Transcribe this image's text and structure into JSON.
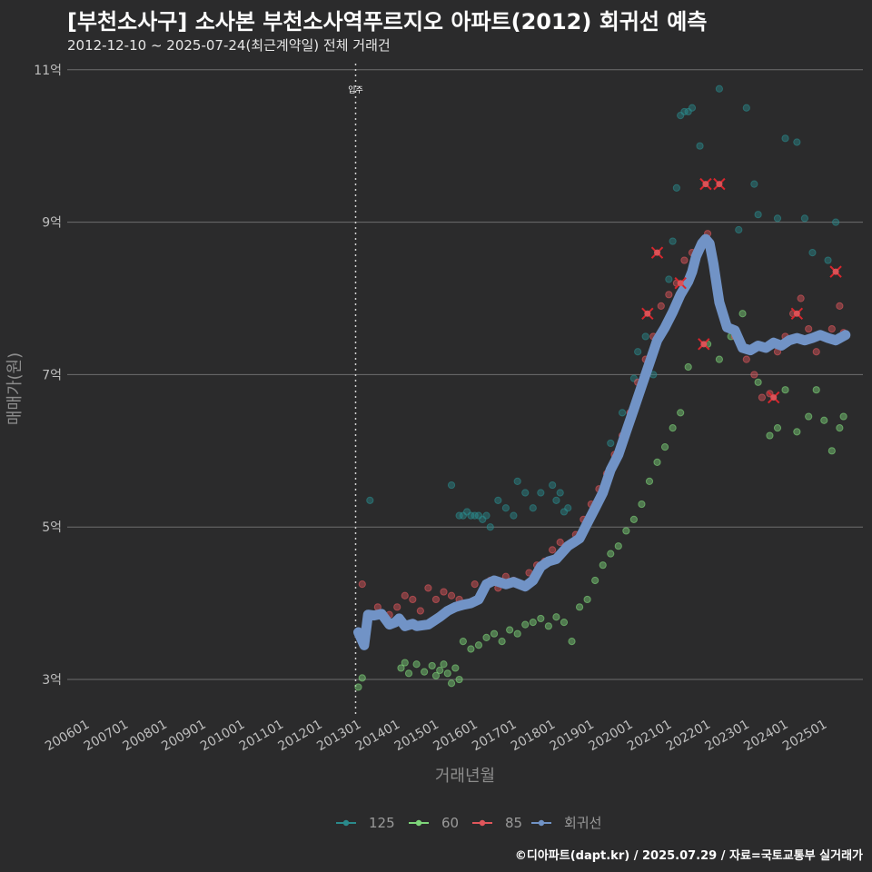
{
  "chart_data": {
    "type": "scatter",
    "title": "[부천소사구] 소사본 부천소사역푸르지오 아파트(2012) 회귀선 예측",
    "subtitle": "2012-12-10 ~ 2025-07-24(최근계약일) 전체 거래건",
    "xlabel": "거래년월",
    "ylabel": "매매가(원)",
    "ylim": [
      2.5,
      11.2
    ],
    "xlim": [
      2005.5,
      2026.0
    ],
    "y_ticks": [
      {
        "v": 3,
        "label": "3억"
      },
      {
        "v": 5,
        "label": "5억"
      },
      {
        "v": 7,
        "label": "7억"
      },
      {
        "v": 9,
        "label": "9억"
      },
      {
        "v": 11,
        "label": "11억"
      }
    ],
    "x_ticks": [
      {
        "v": 2006,
        "label": "200601"
      },
      {
        "v": 2007,
        "label": "200701"
      },
      {
        "v": 2008,
        "label": "200801"
      },
      {
        "v": 2009,
        "label": "200901"
      },
      {
        "v": 2010,
        "label": "201001"
      },
      {
        "v": 2011,
        "label": "201101"
      },
      {
        "v": 2012,
        "label": "201201"
      },
      {
        "v": 2013,
        "label": "201301"
      },
      {
        "v": 2014,
        "label": "201401"
      },
      {
        "v": 2015,
        "label": "201501"
      },
      {
        "v": 2016,
        "label": "201601"
      },
      {
        "v": 2017,
        "label": "201701"
      },
      {
        "v": 2018,
        "label": "201801"
      },
      {
        "v": 2019,
        "label": "201901"
      },
      {
        "v": 2020,
        "label": "202001"
      },
      {
        "v": 2021,
        "label": "202101"
      },
      {
        "v": 2022,
        "label": "202201"
      },
      {
        "v": 2023,
        "label": "202301"
      },
      {
        "v": 2024,
        "label": "202401"
      },
      {
        "v": 2025,
        "label": "202501"
      }
    ],
    "annotation": {
      "x": 2012.93,
      "label": "입주"
    },
    "legend": [
      {
        "name": "125",
        "color": "#2a8a8c"
      },
      {
        "name": "60",
        "color": "#7ed67a"
      },
      {
        "name": "85",
        "color": "#e0565b"
      },
      {
        "name": "회귀선",
        "color": "#7193c6"
      }
    ],
    "regression": {
      "name": "회귀선",
      "x": [
        2013.0,
        2013.15,
        2013.25,
        2013.4,
        2013.6,
        2013.8,
        2013.95,
        2014.05,
        2014.2,
        2014.4,
        2014.5,
        2014.8,
        2015.1,
        2015.3,
        2015.5,
        2015.7,
        2015.9,
        2016.1,
        2016.3,
        2016.5,
        2016.8,
        2017.0,
        2017.3,
        2017.5,
        2017.7,
        2017.9,
        2018.1,
        2018.4,
        2018.7,
        2018.9,
        2019.1,
        2019.3,
        2019.5,
        2019.7,
        2019.9,
        2020.1,
        2020.3,
        2020.5,
        2020.7,
        2020.9,
        2021.1,
        2021.3,
        2021.5,
        2021.6,
        2021.7,
        2021.85,
        2021.95,
        2022.05,
        2022.15,
        2022.3,
        2022.5,
        2022.7,
        2022.9,
        2023.1,
        2023.3,
        2023.5,
        2023.7,
        2023.9,
        2024.1,
        2024.3,
        2024.5,
        2024.7,
        2024.9,
        2025.1,
        2025.3,
        2025.55
      ],
      "y": [
        3.62,
        3.45,
        3.85,
        3.84,
        3.86,
        3.72,
        3.75,
        3.8,
        3.7,
        3.73,
        3.7,
        3.72,
        3.82,
        3.9,
        3.95,
        3.98,
        4.0,
        4.05,
        4.25,
        4.3,
        4.25,
        4.28,
        4.22,
        4.3,
        4.48,
        4.55,
        4.58,
        4.75,
        4.85,
        5.05,
        5.25,
        5.45,
        5.75,
        5.95,
        6.25,
        6.55,
        6.85,
        7.15,
        7.45,
        7.62,
        7.82,
        8.05,
        8.22,
        8.35,
        8.55,
        8.72,
        8.78,
        8.72,
        8.45,
        7.95,
        7.62,
        7.58,
        7.35,
        7.32,
        7.38,
        7.35,
        7.42,
        7.38,
        7.45,
        7.48,
        7.45,
        7.48,
        7.52,
        7.48,
        7.45,
        7.52
      ]
    },
    "series": [
      {
        "name": "125",
        "x": [
          2013.3,
          2015.4,
          2015.6,
          2015.7,
          2015.8,
          2015.9,
          2016.0,
          2016.1,
          2016.2,
          2016.3,
          2016.4,
          2016.6,
          2016.8,
          2017.0,
          2017.1,
          2017.3,
          2017.5,
          2017.7,
          2018.0,
          2018.1,
          2018.2,
          2018.3,
          2018.4,
          2019.5,
          2019.8,
          2020.1,
          2020.2,
          2020.4,
          2020.6,
          2020.9,
          2021.0,
          2021.1,
          2021.2,
          2021.3,
          2021.4,
          2021.5,
          2021.6,
          2021.8,
          2022.3,
          2022.8,
          2023.0,
          2023.2,
          2023.3,
          2023.8,
          2024.0,
          2024.3,
          2024.5,
          2024.7,
          2024.9,
          2025.1,
          2025.3,
          2025.4
        ],
        "y": [
          5.35,
          5.55,
          5.15,
          5.15,
          5.2,
          5.15,
          5.15,
          5.15,
          5.1,
          5.15,
          5.0,
          5.35,
          5.25,
          5.15,
          5.6,
          5.45,
          5.25,
          5.45,
          5.55,
          5.35,
          5.45,
          5.2,
          5.25,
          6.1,
          6.5,
          6.95,
          7.3,
          7.5,
          7.0,
          7.6,
          8.25,
          8.75,
          9.45,
          10.4,
          10.45,
          10.45,
          10.5,
          10.0,
          10.75,
          8.9,
          10.5,
          9.5,
          9.1,
          9.05,
          10.1,
          10.05,
          9.05,
          8.6,
          7.5,
          8.5,
          9.0,
          7.5
        ]
      },
      {
        "name": "60",
        "x": [
          2013.0,
          2013.1,
          2014.1,
          2014.2,
          2014.3,
          2014.5,
          2014.7,
          2014.9,
          2015.0,
          2015.1,
          2015.2,
          2015.3,
          2015.4,
          2015.5,
          2015.6,
          2015.7,
          2015.9,
          2016.1,
          2016.3,
          2016.5,
          2016.7,
          2016.9,
          2017.1,
          2017.3,
          2017.5,
          2017.7,
          2017.9,
          2018.1,
          2018.3,
          2018.5,
          2018.7,
          2018.9,
          2019.1,
          2019.3,
          2019.5,
          2019.7,
          2019.9,
          2020.1,
          2020.3,
          2020.5,
          2020.7,
          2020.9,
          2021.1,
          2021.3,
          2021.5,
          2022.0,
          2022.3,
          2022.6,
          2022.9,
          2023.3,
          2023.6,
          2023.8,
          2024.0,
          2024.3,
          2024.6,
          2024.8,
          2025.0,
          2025.2,
          2025.4,
          2025.5
        ],
        "y": [
          2.9,
          3.02,
          3.15,
          3.22,
          3.08,
          3.2,
          3.1,
          3.18,
          3.05,
          3.12,
          3.2,
          3.08,
          2.95,
          3.15,
          3.0,
          3.5,
          3.4,
          3.45,
          3.55,
          3.6,
          3.5,
          3.65,
          3.6,
          3.72,
          3.75,
          3.8,
          3.7,
          3.82,
          3.75,
          3.5,
          3.95,
          4.05,
          4.3,
          4.5,
          4.65,
          4.75,
          4.95,
          5.1,
          5.3,
          5.6,
          5.85,
          6.05,
          6.3,
          6.5,
          7.1,
          7.4,
          7.2,
          7.5,
          7.8,
          6.9,
          6.2,
          6.3,
          6.8,
          6.25,
          6.45,
          6.8,
          6.4,
          6.0,
          6.3,
          6.45
        ]
      },
      {
        "name": "85",
        "x": [
          2013.1,
          2013.5,
          2013.8,
          2014.0,
          2014.2,
          2014.4,
          2014.6,
          2014.8,
          2015.0,
          2015.2,
          2015.4,
          2015.6,
          2015.8,
          2016.0,
          2016.2,
          2016.4,
          2016.6,
          2016.8,
          2017.0,
          2017.2,
          2017.4,
          2017.6,
          2017.8,
          2018.0,
          2018.2,
          2018.4,
          2018.6,
          2018.8,
          2019.0,
          2019.2,
          2019.4,
          2019.6,
          2019.8,
          2020.0,
          2020.2,
          2020.4,
          2020.6,
          2020.8,
          2021.0,
          2021.2,
          2021.4,
          2021.6,
          2021.8,
          2022.0,
          2022.2,
          2022.4,
          2022.7,
          2023.0,
          2023.2,
          2023.4,
          2023.6,
          2023.8,
          2024.0,
          2024.2,
          2024.4,
          2024.6,
          2024.8,
          2025.0,
          2025.2,
          2025.4,
          2025.5
        ],
        "y": [
          4.25,
          3.95,
          3.85,
          3.95,
          4.1,
          4.05,
          3.9,
          4.2,
          4.05,
          4.15,
          4.1,
          4.05,
          4.0,
          4.25,
          4.15,
          4.3,
          4.2,
          4.35,
          4.3,
          4.25,
          4.4,
          4.5,
          4.55,
          4.7,
          4.8,
          4.75,
          4.9,
          5.1,
          5.3,
          5.5,
          5.7,
          5.95,
          6.2,
          6.5,
          6.9,
          7.2,
          7.5,
          7.9,
          8.05,
          8.2,
          8.5,
          8.6,
          8.7,
          8.85,
          8.3,
          7.8,
          7.5,
          7.2,
          7.0,
          6.7,
          6.75,
          7.3,
          7.5,
          7.8,
          8.0,
          7.6,
          7.3,
          7.5,
          7.6,
          7.9,
          7.55
        ]
      },
      {
        "name": "85-highlight",
        "x": [
          2020.45,
          2020.7,
          2021.3,
          2021.9,
          2021.95,
          2022.3,
          2023.7,
          2024.3,
          2025.3
        ],
        "y": [
          7.8,
          8.6,
          8.2,
          7.4,
          9.5,
          9.5,
          6.7,
          7.8,
          8.35
        ]
      }
    ]
  },
  "credit": "©디아파트(dapt.kr) / 2025.07.29 / 자료=국토교통부 실거래가"
}
